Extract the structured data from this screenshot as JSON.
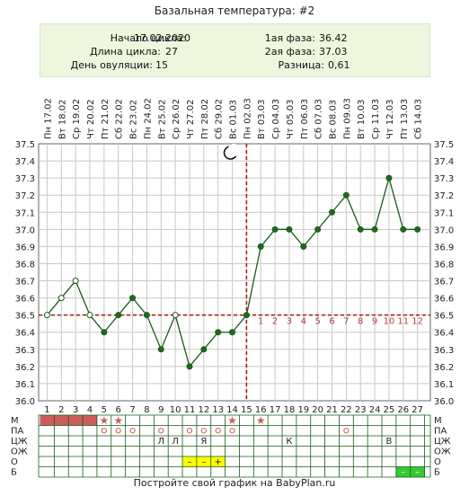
{
  "title": "Базальная температура: #2",
  "info": {
    "cycle_start_label": "Начало цикла:",
    "cycle_start_value": "17.02.2020",
    "cycle_length_label": "Длина цикла:",
    "cycle_length_value": "27",
    "ovulation_day_label": "День овуляции:",
    "ovulation_day_value": "15",
    "phase1_label": "1ая фаза:",
    "phase1_value": "36.42",
    "phase2_label": "2ая фаза:",
    "phase2_value": "37.03",
    "difference_label": "Разница:",
    "difference_value": "0,61"
  },
  "footer": "Постройте свой график на BabyPlan.ru",
  "colors": {
    "line": "#1a5a1a",
    "marker_fill": "#1e6b1e",
    "coverline": "#b01010",
    "grid": "#c8c8c8",
    "menses_fill": "#cd5c5c",
    "star": "#cd5c5c",
    "yellow_cell": "#ffff00",
    "green_cell": "#33cc33"
  },
  "chart_data": {
    "type": "line",
    "x": [
      1,
      2,
      3,
      4,
      5,
      6,
      7,
      8,
      9,
      10,
      11,
      12,
      13,
      14,
      15,
      16,
      17,
      18,
      19,
      20,
      21,
      22,
      23,
      24,
      25,
      26,
      27
    ],
    "date_labels": [
      "Пн 17.02",
      "Вт 18.02",
      "Ср 19.02",
      "Чт 20.02",
      "Пт 21.02",
      "Сб 22.02",
      "Вс 23.02",
      "Пн 24.02",
      "Вт 25.02",
      "Ср 26.02",
      "Чт 27.02",
      "Пт 28.02",
      "Сб 29.02",
      "Вс 01.03",
      "Пн 02.03",
      "Вт 03.03",
      "Ср 04.03",
      "Чт 05.03",
      "Пт 06.03",
      "Сб 07.03",
      "Вс 08.03",
      "Пн 09.03",
      "Вт 10.03",
      "Ср 11.03",
      "Чт 12.03",
      "Пт 13.03",
      "Сб 14.03"
    ],
    "series": [
      {
        "values": [
          36.5,
          36.6,
          36.7,
          36.5,
          36.4,
          36.5,
          36.6,
          36.5,
          36.3,
          36.5,
          36.2,
          36.3,
          36.4,
          36.4,
          36.5,
          36.9,
          37.0,
          37.0,
          36.9,
          37.0,
          37.1,
          37.2,
          37.0,
          37.0,
          37.3,
          37.0,
          37.0
        ],
        "hollow_days": [
          1,
          2,
          3,
          4,
          10
        ]
      }
    ],
    "ylim": [
      36.0,
      37.5
    ],
    "yticks": [
      "36.0",
      "36.1",
      "36.2",
      "36.3",
      "36.4",
      "36.5",
      "36.6",
      "36.7",
      "36.8",
      "36.9",
      "37.0",
      "37.1",
      "37.2",
      "37.3",
      "37.4",
      "37.5"
    ],
    "coverline": 36.5,
    "ovulation_day": 15,
    "phase2_counts": [
      "1",
      "2",
      "3",
      "4",
      "5",
      "6",
      "7",
      "8",
      "9",
      "10",
      "11",
      "12"
    ],
    "moon_day": 14,
    "grid": true
  },
  "grid_rows": {
    "labels": [
      "М",
      "ПА",
      "ЦЖ",
      "ОЖ",
      "О",
      "Б"
    ],
    "M_filled": [
      1,
      2,
      3,
      4
    ],
    "M_stars": [
      5,
      6,
      14,
      16
    ],
    "PA_circles": [
      5,
      6,
      7,
      9,
      11,
      12,
      13,
      14,
      22
    ],
    "CZH": [
      {
        "day": 9,
        "text": "Л"
      },
      {
        "day": 10,
        "text": "Л"
      },
      {
        "day": 12,
        "text": "Я"
      },
      {
        "day": 18,
        "text": "К"
      },
      {
        "day": 25,
        "text": "В"
      }
    ],
    "O": [
      {
        "day": 11,
        "text": "–"
      },
      {
        "day": 12,
        "text": "–"
      },
      {
        "day": 13,
        "text": "+"
      }
    ],
    "B": [
      {
        "day": 26,
        "text": "–"
      },
      {
        "day": 27,
        "text": "–"
      }
    ]
  }
}
